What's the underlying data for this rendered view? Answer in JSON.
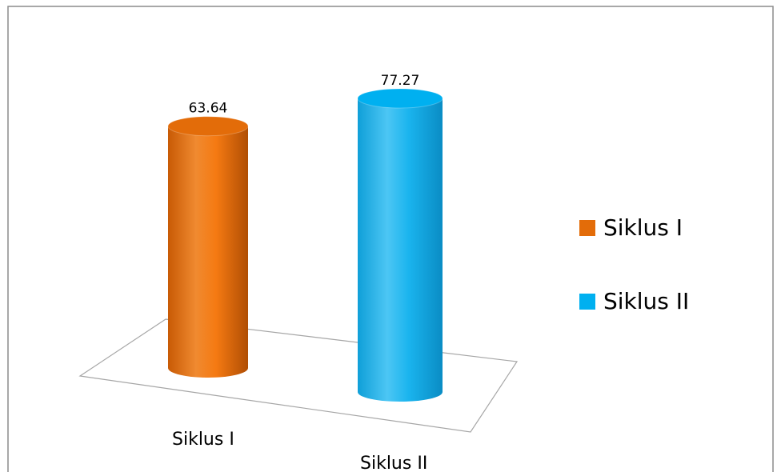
{
  "chart_data": {
    "type": "bar",
    "categories": [
      "Siklus I",
      "Siklus II"
    ],
    "values": [
      63.64,
      77.27
    ],
    "colors": [
      "#e36c09",
      "#00b0f0"
    ],
    "ylim": [
      0,
      80
    ],
    "legend": "right"
  }
}
